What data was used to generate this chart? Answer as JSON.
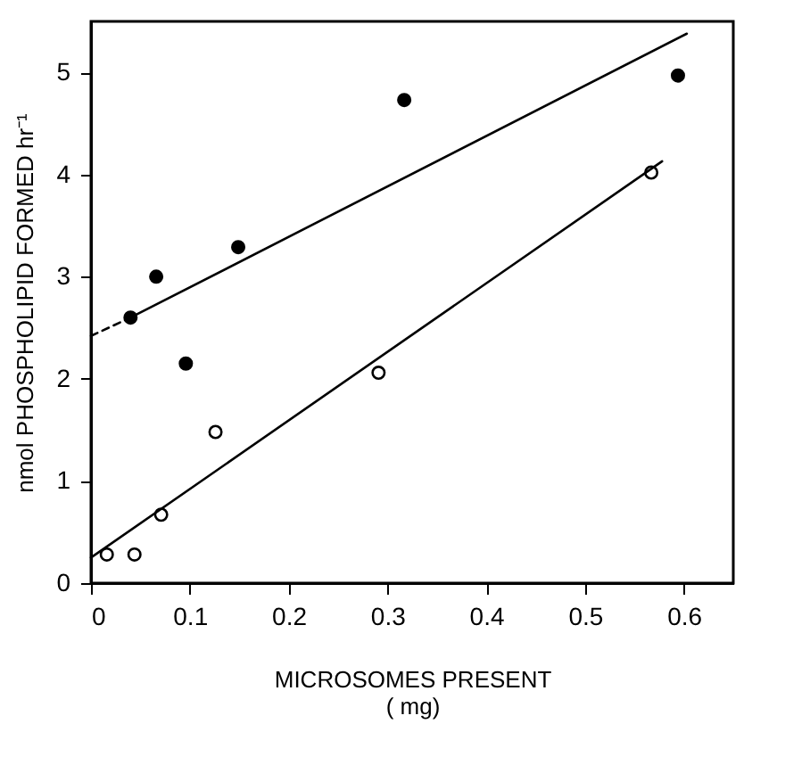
{
  "chart_data": {
    "type": "scatter",
    "xlabel": "MICROSOMES PRESENT\n( mg)",
    "ylabel": "nmol PHOSPHOLIPID FORMED hr⁻¹",
    "xlim": [
      0,
      0.65
    ],
    "xticks": [
      0,
      0.1,
      0.2,
      0.3,
      0.4,
      0.5,
      0.6
    ],
    "ylim": [
      0,
      5.5
    ],
    "yticks": [
      0,
      1,
      2,
      3,
      4,
      5
    ],
    "grid": false,
    "series": [
      {
        "color": "#000000",
        "marker": "circle",
        "x": [
          0.04,
          0.066,
          0.096,
          0.149,
          0.317,
          0.594
        ],
        "values": [
          2.6,
          3.0,
          2.15,
          3.29,
          4.73,
          4.97
        ]
      },
      {
        "color": "#000000",
        "marker": "circle",
        "x": [
          0.016,
          0.044,
          0.071,
          0.126,
          0.291,
          0.567
        ],
        "values": [
          0.28,
          0.28,
          0.67,
          1.48,
          2.06,
          4.02
        ]
      },
      {
        "type": "line",
        "color": "#000000",
        "marker": "none",
        "line_style": "dashed",
        "x": [
          0,
          0.04
        ],
        "values": [
          2.42,
          2.6
        ]
      },
      {
        "type": "line",
        "color": "#000000",
        "marker": "none",
        "line_style": "solid",
        "x": [
          0.04,
          0.603
        ],
        "values": [
          2.6,
          5.38
        ]
      },
      {
        "type": "line",
        "color": "#000000",
        "marker": "none",
        "line_style": "solid",
        "x": [
          0,
          0.578
        ],
        "values": [
          0.25,
          4.13
        ]
      }
    ]
  }
}
